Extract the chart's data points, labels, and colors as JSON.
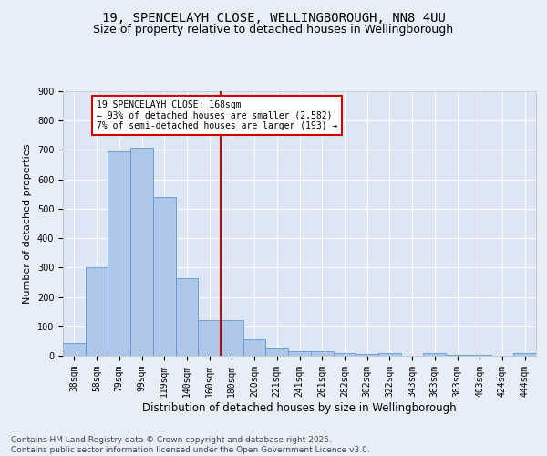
{
  "title1": "19, SPENCELAYH CLOSE, WELLINGBOROUGH, NN8 4UU",
  "title2": "Size of property relative to detached houses in Wellingborough",
  "xlabel": "Distribution of detached houses by size in Wellingborough",
  "ylabel": "Number of detached properties",
  "categories": [
    "38sqm",
    "58sqm",
    "79sqm",
    "99sqm",
    "119sqm",
    "140sqm",
    "160sqm",
    "180sqm",
    "200sqm",
    "221sqm",
    "241sqm",
    "261sqm",
    "282sqm",
    "302sqm",
    "322sqm",
    "343sqm",
    "363sqm",
    "383sqm",
    "403sqm",
    "424sqm",
    "444sqm"
  ],
  "values": [
    45,
    300,
    695,
    708,
    540,
    265,
    120,
    120,
    57,
    25,
    15,
    17,
    8,
    5,
    10,
    1,
    10,
    3,
    2,
    1,
    8
  ],
  "bar_color": "#aec6e8",
  "bar_edge_color": "#5b9bd5",
  "bg_color": "#dce6f5",
  "grid_color": "#ffffff",
  "fig_bg_color": "#e8eef8",
  "vline_x_index": 6,
  "vline_color": "#cc0000",
  "annotation_text": "19 SPENCELAYH CLOSE: 168sqm\n← 93% of detached houses are smaller (2,582)\n7% of semi-detached houses are larger (193) →",
  "annotation_box_color": "#cc0000",
  "annotation_text_color": "#000000",
  "ylim": [
    0,
    900
  ],
  "yticks": [
    0,
    100,
    200,
    300,
    400,
    500,
    600,
    700,
    800,
    900
  ],
  "footer": "Contains HM Land Registry data © Crown copyright and database right 2025.\nContains public sector information licensed under the Open Government Licence v3.0.",
  "title1_fontsize": 10,
  "title2_fontsize": 9,
  "xlabel_fontsize": 8.5,
  "ylabel_fontsize": 8,
  "tick_fontsize": 7,
  "footer_fontsize": 6.5
}
